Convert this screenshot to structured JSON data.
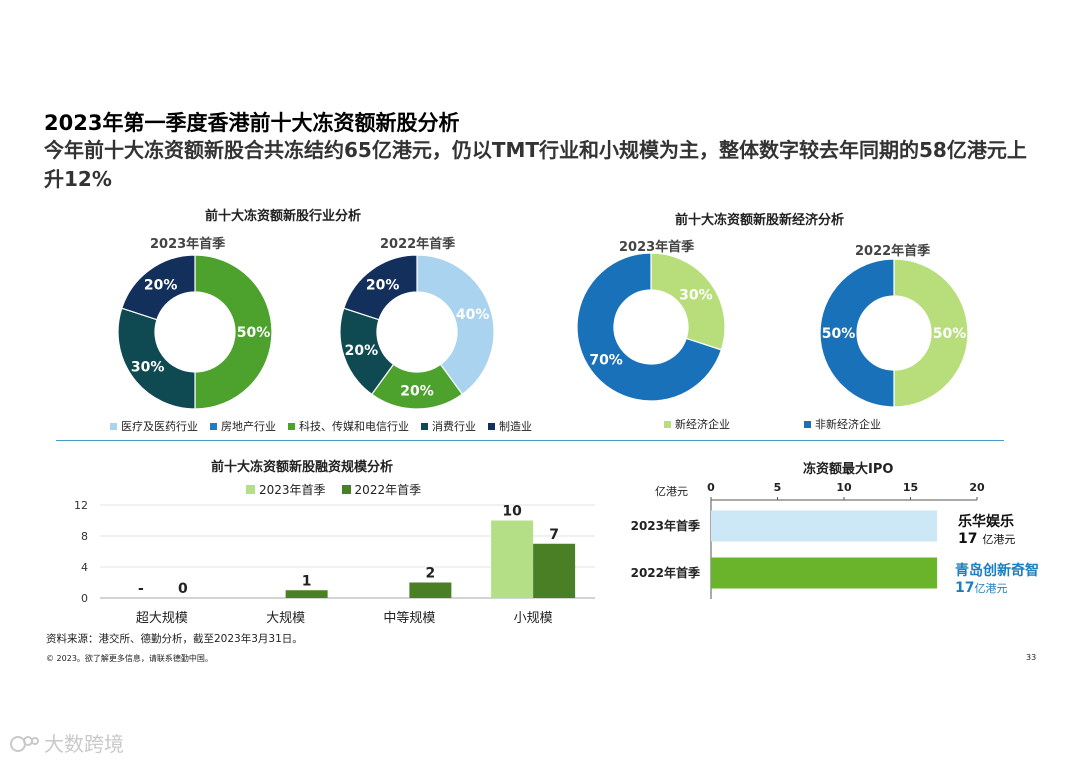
{
  "page": {
    "title": "2023年第一季度香港前十大冻资额新股分析",
    "subtitle": "今年前十大冻资额新股合共冻结约65亿港元，仍以TMT行业和小规模为主，整体数字较去年同期的58亿港元上升12%",
    "source": "资料来源：港交所、德勤分析，截至2023年3月31日。",
    "copyright": "© 2023。欲了解更多信息，请联系德勤中国。",
    "page_number": "33",
    "watermark": "大数跨境"
  },
  "colors": {
    "industry": [
      "#a9d3ee",
      "#1f7fbe",
      "#4ca22d",
      "#0f4a52",
      "#13305c"
    ],
    "new_economy": "#b7de7b",
    "non_new_economy": "#1871b9",
    "bar_2023": "#b5df86",
    "bar_2022": "#4b7f26",
    "ipo_2023": "#cce7f6",
    "ipo_2022": "#6ab42b",
    "ipo_2022_label": "#1c7fbf"
  },
  "chart_data": [
    {
      "type": "pie",
      "title": "前十大冻资额新股行业分析",
      "period": "2023年首季",
      "legend": [
        "医疗及医药行业",
        "房地产行业",
        "科技、传媒和电信行业",
        "消费行业",
        "制造业"
      ],
      "values": [
        0,
        0,
        50,
        30,
        20
      ],
      "labels": [
        "",
        "",
        "50%",
        "30%",
        "20%"
      ]
    },
    {
      "type": "pie",
      "title": "前十大冻资额新股行业分析",
      "period": "2022年首季",
      "legend": [
        "医疗及医药行业",
        "房地产行业",
        "科技、传媒和电信行业",
        "消费行业",
        "制造业"
      ],
      "values": [
        40,
        0,
        20,
        20,
        20
      ],
      "labels": [
        "40%",
        "",
        "20%",
        "20%",
        "20%"
      ]
    },
    {
      "type": "pie",
      "title": "前十大冻资额新股新经济分析",
      "period": "2023年首季",
      "legend": [
        "新经济企业",
        "非新经济企业"
      ],
      "values": [
        30,
        70
      ],
      "labels": [
        "30%",
        "70%"
      ]
    },
    {
      "type": "pie",
      "title": "前十大冻资额新股新经济分析",
      "period": "2022年首季",
      "legend": [
        "新经济企业",
        "非新经济企业"
      ],
      "values": [
        50,
        50
      ],
      "labels": [
        "50%",
        "50%"
      ]
    },
    {
      "type": "bar",
      "title": "前十大冻资额新股融资规模分析",
      "categories": [
        "超大规模",
        "大规模",
        "中等规模",
        "小规模"
      ],
      "series": [
        {
          "name": "2023年首季",
          "values": [
            0,
            0,
            0,
            10
          ],
          "labels": [
            "-",
            "",
            "",
            "10"
          ]
        },
        {
          "name": "2022年首季",
          "values": [
            0,
            1,
            2,
            7
          ],
          "labels": [
            "0",
            "1",
            "2",
            "7"
          ]
        }
      ],
      "yticks": [
        "0",
        "4",
        "8",
        "12"
      ],
      "ylim": [
        0,
        12
      ]
    },
    {
      "type": "bar",
      "orientation": "horizontal",
      "title": "冻资额最大IPO",
      "unit_label": "亿港元",
      "xticks": [
        "0",
        "5",
        "10",
        "15",
        "20"
      ],
      "xlim": [
        0,
        20
      ],
      "categories": [
        "2023年首季",
        "2022年首季"
      ],
      "values": [
        17,
        17
      ],
      "companies": [
        "乐华娱乐",
        "青岛创新奇智"
      ],
      "value_labels": [
        "17",
        "17"
      ],
      "value_units": [
        "亿港元",
        "亿港元"
      ]
    }
  ]
}
